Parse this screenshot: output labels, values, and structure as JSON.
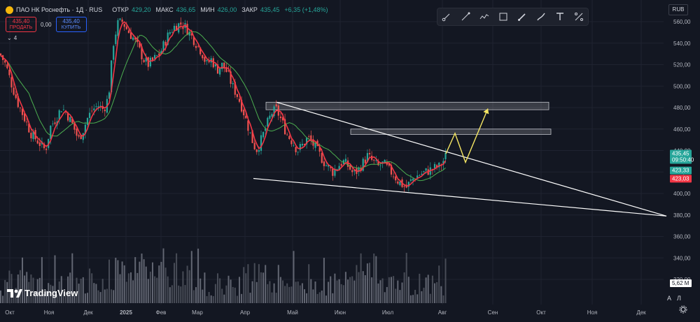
{
  "header": {
    "symbol": "ПАО НК Роснефть · 1Д · RUS",
    "open_label": "ОТКР",
    "open": "429,20",
    "high_label": "МАКС",
    "high": "436,65",
    "low_label": "МИН",
    "low": "426,00",
    "close_label": "ЗАКР",
    "close": "435,45",
    "change": "+6,35 (+1,48%)"
  },
  "trade": {
    "sell_price": "435,40",
    "sell_label": "ПРОДАТЬ",
    "spread": "0,00",
    "buy_price": "435,40",
    "buy_label": "КУПИТЬ"
  },
  "indicators_count": "4",
  "currency": "RUB",
  "brand": "TradingView",
  "scale_buttons": {
    "auto": "A",
    "log": "Л"
  },
  "toolbar_icons": [
    "path-tool-icon",
    "trend-line-icon",
    "polyline-icon",
    "rectangle-icon",
    "brush-icon",
    "highlighter-icon",
    "text-tool-icon",
    "ruler-icon"
  ],
  "colors": {
    "up": "#26a69a",
    "down": "#ef5350",
    "ma_fast": "#f23645",
    "ma_slow": "#4caf50",
    "arrow": "#f5e663",
    "bg": "#131722"
  },
  "chart_data": {
    "type": "candlestick",
    "y_ticks": [
      "560,00",
      "540,00",
      "520,00",
      "500,00",
      "480,00",
      "460,00",
      "440,00",
      "420,00",
      "400,00",
      "380,00",
      "360,00",
      "340,00",
      "320,00"
    ],
    "y_range": [
      308,
      568
    ],
    "x_ticks": [
      "Окт",
      "Ноя",
      "Дек",
      "2025",
      "Фев",
      "Мар",
      "Апр",
      "Май",
      "Июн",
      "Июл",
      "Авг",
      "Сен",
      "Окт",
      "Ноя",
      "Дек"
    ],
    "price_labels": [
      {
        "value": 435.45,
        "text": "435,45",
        "sub": "09:50:40",
        "color": "#26a69a"
      },
      {
        "value": 423.33,
        "text": "423,33",
        "color": "#26a69a"
      },
      {
        "value": 423.03,
        "text": "423,03",
        "color": "#f23645"
      }
    ],
    "volume_label": "5,62 M",
    "zones": [
      {
        "from": 478,
        "to": 485
      },
      {
        "from": 455,
        "to": 460
      }
    ],
    "close_path": [
      [
        0,
        530
      ],
      [
        8,
        520
      ],
      [
        15,
        505
      ],
      [
        25,
        485
      ],
      [
        35,
        470
      ],
      [
        45,
        455
      ],
      [
        55,
        448
      ],
      [
        65,
        440
      ],
      [
        72,
        462
      ],
      [
        80,
        470
      ],
      [
        88,
        480
      ],
      [
        95,
        475
      ],
      [
        105,
        462
      ],
      [
        112,
        450
      ],
      [
        118,
        458
      ],
      [
        125,
        470
      ],
      [
        132,
        478
      ],
      [
        140,
        482
      ],
      [
        148,
        478
      ],
      [
        155,
        490
      ],
      [
        162,
        540
      ],
      [
        168,
        558
      ],
      [
        175,
        560
      ],
      [
        182,
        552
      ],
      [
        190,
        545
      ],
      [
        198,
        535
      ],
      [
        205,
        525
      ],
      [
        212,
        520
      ],
      [
        220,
        525
      ],
      [
        228,
        530
      ],
      [
        235,
        540
      ],
      [
        242,
        550
      ],
      [
        250,
        556
      ],
      [
        258,
        558
      ],
      [
        265,
        555
      ],
      [
        272,
        548
      ],
      [
        280,
        540
      ],
      [
        288,
        532
      ],
      [
        295,
        520
      ],
      [
        302,
        525
      ],
      [
        310,
        515
      ],
      [
        318,
        520
      ],
      [
        325,
        512
      ],
      [
        332,
        500
      ],
      [
        340,
        490
      ],
      [
        347,
        478
      ],
      [
        353,
        465
      ],
      [
        360,
        450
      ],
      [
        366,
        440
      ],
      [
        372,
        448
      ],
      [
        380,
        462
      ],
      [
        388,
        475
      ],
      [
        395,
        478
      ],
      [
        402,
        468
      ],
      [
        410,
        455
      ],
      [
        418,
        448
      ],
      [
        425,
        440
      ],
      [
        432,
        445
      ],
      [
        440,
        452
      ],
      [
        448,
        445
      ],
      [
        455,
        438
      ],
      [
        462,
        430
      ],
      [
        468,
        425
      ],
      [
        475,
        420
      ],
      [
        482,
        425
      ],
      [
        490,
        430
      ],
      [
        498,
        425
      ],
      [
        505,
        418
      ],
      [
        512,
        422
      ],
      [
        518,
        428
      ],
      [
        525,
        435
      ],
      [
        532,
        430
      ],
      [
        540,
        425
      ],
      [
        548,
        428
      ],
      [
        555,
        422
      ],
      [
        562,
        418
      ],
      [
        568,
        412
      ],
      [
        575,
        408
      ],
      [
        580,
        405
      ],
      [
        585,
        410
      ],
      [
        592,
        415
      ],
      [
        600,
        418
      ],
      [
        608,
        420
      ],
      [
        615,
        422
      ],
      [
        622,
        424
      ],
      [
        628,
        425
      ],
      [
        633,
        430
      ],
      [
        637,
        435
      ]
    ],
    "triangle": {
      "upper": [
        [
          395,
          485
        ],
        [
          952,
          379
        ]
      ],
      "lower": [
        [
          362,
          414
        ],
        [
          952,
          379
        ]
      ]
    },
    "projection": [
      [
        637,
        437
      ],
      [
        650,
        456
      ],
      [
        665,
        429
      ],
      [
        697,
        479
      ]
    ]
  }
}
